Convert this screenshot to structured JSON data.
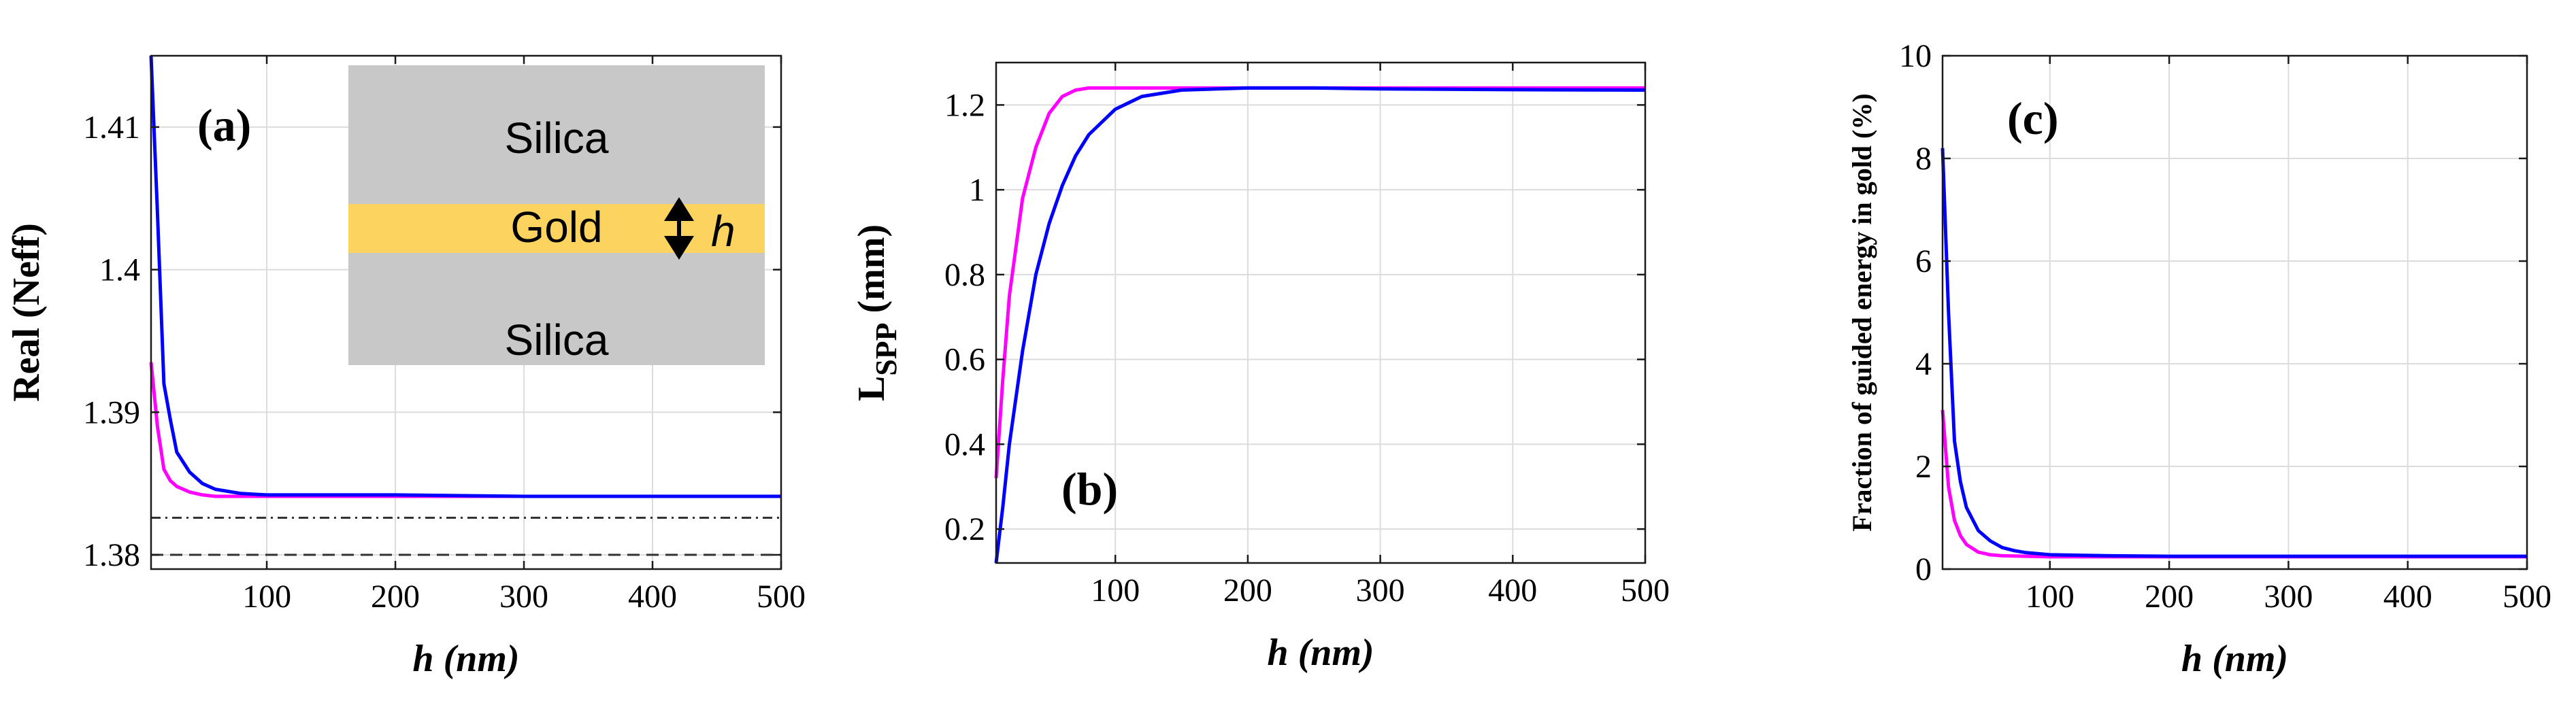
{
  "chart_data": [
    {
      "id": "a",
      "type": "line",
      "panel_label": "(a)",
      "xlabel": "h (nm)",
      "ylabel": "Real (Neff)",
      "xlim": [
        10,
        500
      ],
      "ylim": [
        1.379,
        1.415
      ],
      "xticks": [
        100,
        200,
        300,
        400,
        500
      ],
      "yticks": [
        1.38,
        1.39,
        1.4,
        1.41
      ],
      "grid": true,
      "series": [
        {
          "name": "magenta",
          "color": "#ff00ff",
          "x": [
            10,
            15,
            20,
            25,
            30,
            40,
            50,
            60,
            80,
            100,
            150,
            200,
            300,
            400,
            500
          ],
          "y": [
            1.3935,
            1.389,
            1.386,
            1.3852,
            1.3848,
            1.3844,
            1.3842,
            1.3841,
            1.3841,
            1.3841,
            1.3841,
            1.3841,
            1.3841,
            1.3841,
            1.3841
          ]
        },
        {
          "name": "blue",
          "color": "#0000ff",
          "x": [
            10,
            15,
            20,
            25,
            30,
            40,
            50,
            60,
            80,
            100,
            150,
            200,
            300,
            400,
            500
          ],
          "y": [
            1.415,
            1.404,
            1.392,
            1.3895,
            1.3872,
            1.3858,
            1.385,
            1.3846,
            1.3843,
            1.3842,
            1.3842,
            1.3842,
            1.3841,
            1.3841,
            1.3841
          ]
        }
      ],
      "reference_lines": [
        {
          "name": "dash-dot",
          "y": 1.3826,
          "style": "dash-dot"
        },
        {
          "name": "dashed",
          "y": 1.38,
          "style": "dashed"
        }
      ],
      "inset": {
        "top_label": "Silica",
        "middle_label": "Gold",
        "bottom_label": "Silica",
        "thickness_label": "h"
      }
    },
    {
      "id": "b",
      "type": "line",
      "panel_label": "(b)",
      "xlabel": "h (nm)",
      "ylabel_main": "L",
      "ylabel_sub": "SPP",
      "ylabel_unit": " (mm)",
      "xlim": [
        10,
        500
      ],
      "ylim": [
        0.12,
        1.3
      ],
      "xticks": [
        100,
        200,
        300,
        400,
        500
      ],
      "yticks": [
        0.2,
        0.4,
        0.6,
        0.8,
        1,
        1.2
      ],
      "grid": true,
      "series": [
        {
          "name": "magenta",
          "color": "#ff00ff",
          "x": [
            10,
            15,
            20,
            30,
            40,
            50,
            60,
            70,
            80,
            100,
            150,
            200,
            300,
            400,
            500
          ],
          "y": [
            0.32,
            0.55,
            0.75,
            0.98,
            1.1,
            1.18,
            1.22,
            1.235,
            1.24,
            1.24,
            1.24,
            1.24,
            1.24,
            1.24,
            1.24
          ]
        },
        {
          "name": "blue",
          "color": "#0000ff",
          "x": [
            10,
            15,
            20,
            30,
            40,
            50,
            60,
            70,
            80,
            100,
            120,
            150,
            200,
            250,
            300,
            400,
            500
          ],
          "y": [
            0.12,
            0.25,
            0.4,
            0.62,
            0.8,
            0.92,
            1.01,
            1.08,
            1.13,
            1.19,
            1.22,
            1.235,
            1.24,
            1.24,
            1.238,
            1.236,
            1.235
          ]
        }
      ]
    },
    {
      "id": "c",
      "type": "line",
      "panel_label": "(c)",
      "xlabel": "h (nm)",
      "ylabel": "Fraction of guided energy in gold (%)",
      "xlim": [
        10,
        500
      ],
      "ylim": [
        0,
        10
      ],
      "xticks": [
        100,
        200,
        300,
        400,
        500
      ],
      "yticks": [
        0,
        2,
        4,
        6,
        8,
        10
      ],
      "grid": true,
      "series": [
        {
          "name": "magenta",
          "color": "#ff00ff",
          "x": [
            10,
            15,
            20,
            25,
            30,
            40,
            50,
            60,
            80,
            100,
            150,
            200,
            300,
            400,
            500
          ],
          "y": [
            3.1,
            1.6,
            0.95,
            0.65,
            0.48,
            0.33,
            0.28,
            0.26,
            0.25,
            0.24,
            0.24,
            0.24,
            0.24,
            0.24,
            0.24
          ]
        },
        {
          "name": "blue",
          "color": "#0000ff",
          "x": [
            10,
            15,
            20,
            25,
            30,
            40,
            50,
            60,
            70,
            80,
            100,
            150,
            200,
            300,
            400,
            500
          ],
          "y": [
            8.2,
            5.0,
            2.5,
            1.7,
            1.2,
            0.75,
            0.55,
            0.42,
            0.36,
            0.32,
            0.28,
            0.26,
            0.25,
            0.25,
            0.25,
            0.25
          ]
        }
      ]
    }
  ]
}
